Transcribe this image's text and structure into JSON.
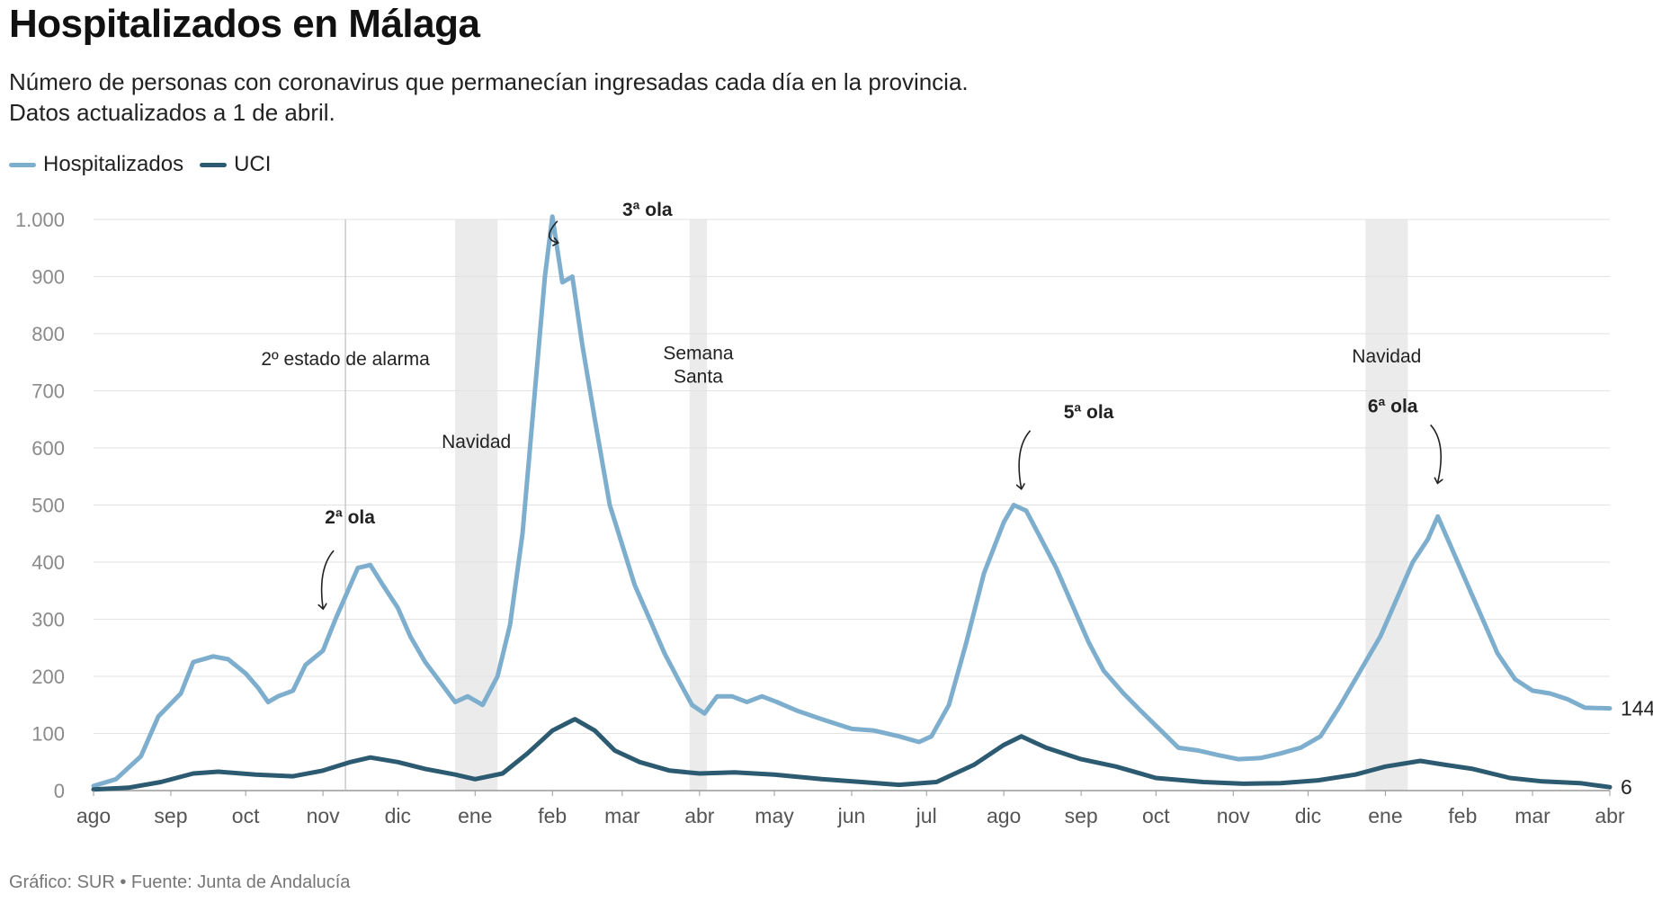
{
  "title": "Hospitalizados en Málaga",
  "subtitle_line1": "Número de personas con coronavirus que permanecían ingresadas cada día en la provincia.",
  "subtitle_line2": "Datos actualizados a 1 de abril.",
  "footer": "Gráfico: SUR • Fuente: Junta de Andalucía",
  "colors": {
    "hospitalizados": "#7eaecd",
    "uci": "#2c5a70",
    "shade": "#ebebeb",
    "grid": "#e2e2e2"
  },
  "chart_data": {
    "type": "line",
    "title": "Hospitalizados en Málaga",
    "xlabel": "",
    "ylabel": "",
    "ylim": [
      0,
      1000
    ],
    "yticks": [
      0,
      100,
      200,
      300,
      400,
      500,
      600,
      700,
      800,
      900,
      1000
    ],
    "ytick_labels": [
      "0",
      "100",
      "200",
      "300",
      "400",
      "500",
      "600",
      "700",
      "800",
      "900",
      "1.000"
    ],
    "xlim": [
      "2020-08-01",
      "2022-04-01"
    ],
    "xticks": [
      {
        "date": "2020-08-01",
        "label": "ago"
      },
      {
        "date": "2020-09-01",
        "label": "sep"
      },
      {
        "date": "2020-10-01",
        "label": "oct"
      },
      {
        "date": "2020-11-01",
        "label": "nov"
      },
      {
        "date": "2020-12-01",
        "label": "dic"
      },
      {
        "date": "2021-01-01",
        "label": "ene"
      },
      {
        "date": "2021-02-01",
        "label": "feb"
      },
      {
        "date": "2021-03-01",
        "label": "mar"
      },
      {
        "date": "2021-04-01",
        "label": "abr"
      },
      {
        "date": "2021-05-01",
        "label": "may"
      },
      {
        "date": "2021-06-01",
        "label": "jun"
      },
      {
        "date": "2021-07-01",
        "label": "jul"
      },
      {
        "date": "2021-08-01",
        "label": "ago"
      },
      {
        "date": "2021-09-01",
        "label": "sep"
      },
      {
        "date": "2021-10-01",
        "label": "oct"
      },
      {
        "date": "2021-11-01",
        "label": "nov"
      },
      {
        "date": "2021-12-01",
        "label": "dic"
      },
      {
        "date": "2022-01-01",
        "label": "ene"
      },
      {
        "date": "2022-02-01",
        "label": "feb"
      },
      {
        "date": "2022-03-01",
        "label": "mar"
      },
      {
        "date": "2022-04-01",
        "label": "abr"
      }
    ],
    "grid": true,
    "legend_position": "top-left",
    "series": [
      {
        "name": "Hospitalizados",
        "color": "#7eaecd",
        "points": [
          [
            "2020-08-01",
            8
          ],
          [
            "2020-08-10",
            20
          ],
          [
            "2020-08-20",
            60
          ],
          [
            "2020-08-27",
            130
          ],
          [
            "2020-09-05",
            170
          ],
          [
            "2020-09-10",
            225
          ],
          [
            "2020-09-18",
            235
          ],
          [
            "2020-09-24",
            230
          ],
          [
            "2020-10-01",
            205
          ],
          [
            "2020-10-06",
            180
          ],
          [
            "2020-10-10",
            155
          ],
          [
            "2020-10-14",
            165
          ],
          [
            "2020-10-20",
            175
          ],
          [
            "2020-10-25",
            220
          ],
          [
            "2020-11-01",
            245
          ],
          [
            "2020-11-06",
            300
          ],
          [
            "2020-11-10",
            340
          ],
          [
            "2020-11-15",
            390
          ],
          [
            "2020-11-20",
            395
          ],
          [
            "2020-11-25",
            360
          ],
          [
            "2020-12-01",
            320
          ],
          [
            "2020-12-06",
            270
          ],
          [
            "2020-12-12",
            225
          ],
          [
            "2020-12-18",
            190
          ],
          [
            "2020-12-24",
            155
          ],
          [
            "2020-12-29",
            165
          ],
          [
            "2021-01-04",
            150
          ],
          [
            "2021-01-10",
            200
          ],
          [
            "2021-01-15",
            290
          ],
          [
            "2021-01-20",
            450
          ],
          [
            "2021-01-25",
            700
          ],
          [
            "2021-01-29",
            900
          ],
          [
            "2021-02-01",
            1005
          ],
          [
            "2021-02-05",
            890
          ],
          [
            "2021-02-09",
            900
          ],
          [
            "2021-02-13",
            780
          ],
          [
            "2021-02-18",
            650
          ],
          [
            "2021-02-24",
            500
          ],
          [
            "2021-03-01",
            430
          ],
          [
            "2021-03-06",
            360
          ],
          [
            "2021-03-12",
            300
          ],
          [
            "2021-03-18",
            240
          ],
          [
            "2021-03-24",
            190
          ],
          [
            "2021-03-29",
            150
          ],
          [
            "2021-04-03",
            135
          ],
          [
            "2021-04-08",
            165
          ],
          [
            "2021-04-14",
            165
          ],
          [
            "2021-04-20",
            155
          ],
          [
            "2021-04-26",
            165
          ],
          [
            "2021-05-02",
            155
          ],
          [
            "2021-05-10",
            140
          ],
          [
            "2021-05-20",
            125
          ],
          [
            "2021-06-01",
            108
          ],
          [
            "2021-06-10",
            105
          ],
          [
            "2021-06-20",
            95
          ],
          [
            "2021-06-28",
            85
          ],
          [
            "2021-07-03",
            95
          ],
          [
            "2021-07-10",
            150
          ],
          [
            "2021-07-17",
            260
          ],
          [
            "2021-07-24",
            380
          ],
          [
            "2021-08-01",
            470
          ],
          [
            "2021-08-05",
            500
          ],
          [
            "2021-08-10",
            490
          ],
          [
            "2021-08-16",
            440
          ],
          [
            "2021-08-22",
            390
          ],
          [
            "2021-08-28",
            330
          ],
          [
            "2021-09-04",
            260
          ],
          [
            "2021-09-10",
            210
          ],
          [
            "2021-09-18",
            170
          ],
          [
            "2021-09-26",
            135
          ],
          [
            "2021-10-03",
            105
          ],
          [
            "2021-10-10",
            75
          ],
          [
            "2021-10-18",
            70
          ],
          [
            "2021-10-26",
            62
          ],
          [
            "2021-11-03",
            55
          ],
          [
            "2021-11-12",
            57
          ],
          [
            "2021-11-20",
            65
          ],
          [
            "2021-11-28",
            75
          ],
          [
            "2021-12-06",
            95
          ],
          [
            "2021-12-14",
            150
          ],
          [
            "2021-12-22",
            210
          ],
          [
            "2021-12-30",
            270
          ],
          [
            "2022-01-06",
            340
          ],
          [
            "2022-01-12",
            400
          ],
          [
            "2022-01-18",
            440
          ],
          [
            "2022-01-22",
            480
          ],
          [
            "2022-01-26",
            440
          ],
          [
            "2022-02-01",
            380
          ],
          [
            "2022-02-08",
            310
          ],
          [
            "2022-02-15",
            240
          ],
          [
            "2022-02-22",
            195
          ],
          [
            "2022-03-01",
            175
          ],
          [
            "2022-03-08",
            170
          ],
          [
            "2022-03-15",
            160
          ],
          [
            "2022-03-22",
            145
          ],
          [
            "2022-04-01",
            144
          ]
        ]
      },
      {
        "name": "UCI",
        "color": "#2c5a70",
        "points": [
          [
            "2020-08-01",
            2
          ],
          [
            "2020-08-15",
            5
          ],
          [
            "2020-08-28",
            15
          ],
          [
            "2020-09-10",
            30
          ],
          [
            "2020-09-20",
            33
          ],
          [
            "2020-10-05",
            28
          ],
          [
            "2020-10-20",
            25
          ],
          [
            "2020-11-01",
            35
          ],
          [
            "2020-11-12",
            50
          ],
          [
            "2020-11-20",
            58
          ],
          [
            "2020-12-01",
            50
          ],
          [
            "2020-12-12",
            38
          ],
          [
            "2020-12-24",
            28
          ],
          [
            "2021-01-01",
            20
          ],
          [
            "2021-01-12",
            30
          ],
          [
            "2021-01-22",
            65
          ],
          [
            "2021-02-01",
            105
          ],
          [
            "2021-02-10",
            125
          ],
          [
            "2021-02-18",
            105
          ],
          [
            "2021-02-26",
            70
          ],
          [
            "2021-03-08",
            50
          ],
          [
            "2021-03-20",
            35
          ],
          [
            "2021-04-01",
            30
          ],
          [
            "2021-04-15",
            32
          ],
          [
            "2021-05-01",
            28
          ],
          [
            "2021-05-20",
            20
          ],
          [
            "2021-06-05",
            15
          ],
          [
            "2021-06-20",
            10
          ],
          [
            "2021-07-05",
            15
          ],
          [
            "2021-07-20",
            45
          ],
          [
            "2021-08-01",
            80
          ],
          [
            "2021-08-08",
            95
          ],
          [
            "2021-08-18",
            75
          ],
          [
            "2021-09-01",
            55
          ],
          [
            "2021-09-15",
            42
          ],
          [
            "2021-10-01",
            22
          ],
          [
            "2021-10-20",
            15
          ],
          [
            "2021-11-05",
            12
          ],
          [
            "2021-11-20",
            13
          ],
          [
            "2021-12-05",
            18
          ],
          [
            "2021-12-20",
            28
          ],
          [
            "2022-01-01",
            42
          ],
          [
            "2022-01-15",
            52
          ],
          [
            "2022-01-25",
            45
          ],
          [
            "2022-02-05",
            38
          ],
          [
            "2022-02-20",
            22
          ],
          [
            "2022-03-05",
            16
          ],
          [
            "2022-03-20",
            13
          ],
          [
            "2022-04-01",
            6
          ]
        ]
      }
    ],
    "end_labels": [
      {
        "series": "Hospitalizados",
        "text": "144",
        "value": 144
      },
      {
        "series": "UCI",
        "text": "6",
        "value": 6
      }
    ],
    "shaded_periods": [
      {
        "from": "2020-12-24",
        "to": "2021-01-10",
        "label": "Navidad"
      },
      {
        "from": "2021-03-28",
        "to": "2021-04-04",
        "label": "Semana Santa"
      },
      {
        "from": "2021-12-24",
        "to": "2022-01-10",
        "label": "Navidad"
      }
    ],
    "vertical_markers": [
      {
        "date": "2020-11-10",
        "label": "2º estado de alarma"
      }
    ],
    "annotations": [
      {
        "text": "2ª ola",
        "date": "2020-11-01",
        "value": 310
      },
      {
        "text": "3ª ola",
        "date": "2021-02-03",
        "value": 950
      },
      {
        "text": "5ª ola",
        "date": "2021-08-08",
        "value": 520
      },
      {
        "text": "6ª ola",
        "date": "2022-01-22",
        "value": 530
      }
    ]
  }
}
